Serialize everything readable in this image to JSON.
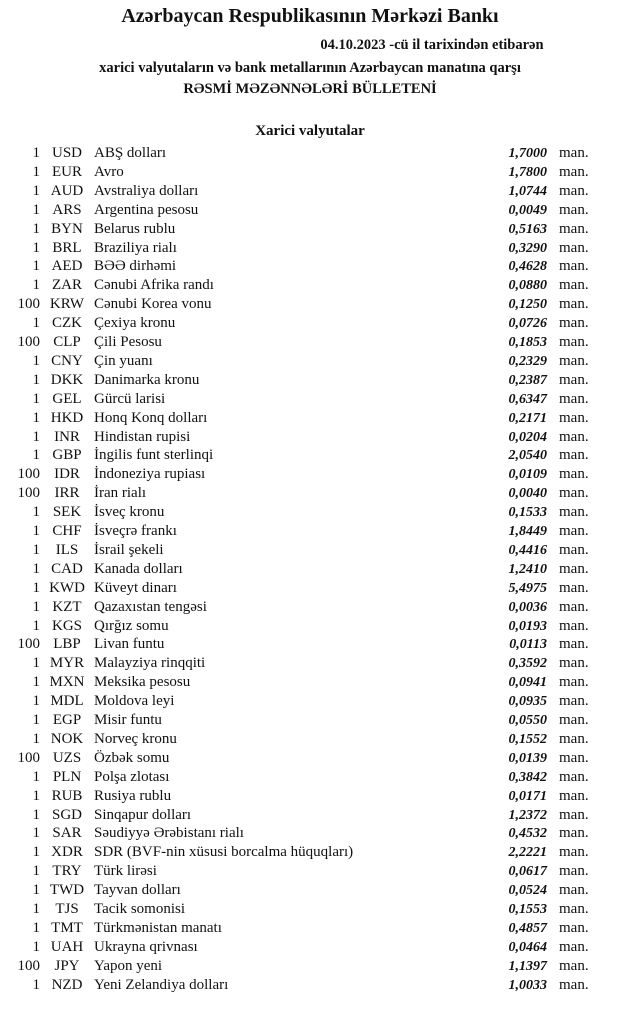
{
  "header": {
    "title": "Azərbaycan Respublikasının Mərkəzi Bankı",
    "date_line": "04.10.2023 -cü il tarixindən etibarən",
    "subtitle": "xarici valyutaların və bank metallarının Azərbaycan manatına qarşı",
    "bulletin": "RƏSMİ MƏZƏNNƏLƏRİ BÜLLETENİ"
  },
  "section_title": "Xarici valyutalar",
  "unit": "man.",
  "rates": [
    {
      "count": "1",
      "code": "USD",
      "name": "ABŞ dolları",
      "value": "1,7000"
    },
    {
      "count": "1",
      "code": "EUR",
      "name": "Avro",
      "value": "1,7800"
    },
    {
      "count": "1",
      "code": "AUD",
      "name": "Avstraliya dolları",
      "value": "1,0744"
    },
    {
      "count": "1",
      "code": "ARS",
      "name": "Argentina pesosu",
      "value": "0,0049"
    },
    {
      "count": "1",
      "code": "BYN",
      "name": "Belarus rublu",
      "value": "0,5163"
    },
    {
      "count": "1",
      "code": "BRL",
      "name": "Braziliya rialı",
      "value": "0,3290"
    },
    {
      "count": "1",
      "code": "AED",
      "name": "BƏƏ dirhəmi",
      "value": "0,4628"
    },
    {
      "count": "1",
      "code": "ZAR",
      "name": "Cənubi Afrika randı",
      "value": "0,0880"
    },
    {
      "count": "100",
      "code": "KRW",
      "name": "Cənubi Korea vonu",
      "value": "0,1250"
    },
    {
      "count": "1",
      "code": "CZK",
      "name": "Çexiya kronu",
      "value": "0,0726"
    },
    {
      "count": "100",
      "code": "CLP",
      "name": "Çili Pesosu",
      "value": "0,1853"
    },
    {
      "count": "1",
      "code": "CNY",
      "name": "Çin yuanı",
      "value": "0,2329"
    },
    {
      "count": "1",
      "code": "DKK",
      "name": "Danimarka kronu",
      "value": "0,2387"
    },
    {
      "count": "1",
      "code": "GEL",
      "name": "Gürcü larisi",
      "value": "0,6347"
    },
    {
      "count": "1",
      "code": "HKD",
      "name": "Honq Konq dolları",
      "value": "0,2171"
    },
    {
      "count": "1",
      "code": "INR",
      "name": "Hindistan rupisi",
      "value": "0,0204"
    },
    {
      "count": "1",
      "code": "GBP",
      "name": "İngilis funt sterlinqi",
      "value": "2,0540"
    },
    {
      "count": "100",
      "code": "IDR",
      "name": "İndoneziya rupiası",
      "value": "0,0109"
    },
    {
      "count": "100",
      "code": "IRR",
      "name": "İran rialı",
      "value": "0,0040"
    },
    {
      "count": "1",
      "code": "SEK",
      "name": "İsveç kronu",
      "value": "0,1533"
    },
    {
      "count": "1",
      "code": "CHF",
      "name": "İsveçrə frankı",
      "value": "1,8449"
    },
    {
      "count": "1",
      "code": "ILS",
      "name": "İsrail şekeli",
      "value": "0,4416"
    },
    {
      "count": "1",
      "code": "CAD",
      "name": "Kanada dolları",
      "value": "1,2410"
    },
    {
      "count": "1",
      "code": "KWD",
      "name": "Küveyt dinarı",
      "value": "5,4975"
    },
    {
      "count": "1",
      "code": "KZT",
      "name": "Qazaxıstan tengəsi",
      "value": "0,0036"
    },
    {
      "count": "1",
      "code": "KGS",
      "name": "Qırğız somu",
      "value": "0,0193"
    },
    {
      "count": "100",
      "code": "LBP",
      "name": "Livan funtu",
      "value": "0,0113"
    },
    {
      "count": "1",
      "code": "MYR",
      "name": "Malayziya rinqqiti",
      "value": "0,3592"
    },
    {
      "count": "1",
      "code": "MXN",
      "name": "Meksika pesosu",
      "value": "0,0941"
    },
    {
      "count": "1",
      "code": "MDL",
      "name": "Moldova leyi",
      "value": "0,0935"
    },
    {
      "count": "1",
      "code": "EGP",
      "name": "Misir funtu",
      "value": "0,0550"
    },
    {
      "count": "1",
      "code": "NOK",
      "name": "Norveç kronu",
      "value": "0,1552"
    },
    {
      "count": "100",
      "code": "UZS",
      "name": "Özbək somu",
      "value": "0,0139"
    },
    {
      "count": "1",
      "code": "PLN",
      "name": "Polşa zlotası",
      "value": "0,3842"
    },
    {
      "count": "1",
      "code": "RUB",
      "name": "Rusiya rublu",
      "value": "0,0171"
    },
    {
      "count": "1",
      "code": "SGD",
      "name": "Sinqapur dolları",
      "value": "1,2372"
    },
    {
      "count": "1",
      "code": "SAR",
      "name": "Səudiyyə Ərəbistanı rialı",
      "value": "0,4532"
    },
    {
      "count": "1",
      "code": "XDR",
      "name": "SDR (BVF-nin xüsusi borcalma hüquqları)",
      "value": "2,2221"
    },
    {
      "count": "1",
      "code": "TRY",
      "name": "Türk lirəsi",
      "value": "0,0617"
    },
    {
      "count": "1",
      "code": "TWD",
      "name": "Tayvan dolları",
      "value": "0,0524"
    },
    {
      "count": "1",
      "code": "TJS",
      "name": "Tacik somonisi",
      "value": "0,1553"
    },
    {
      "count": "1",
      "code": "TMT",
      "name": "Türkmənistan manatı",
      "value": "0,4857"
    },
    {
      "count": "1",
      "code": "UAH",
      "name": "Ukrayna qrivnası",
      "value": "0,0464"
    },
    {
      "count": "100",
      "code": "JPY",
      "name": "Yapon yeni",
      "value": "1,1397"
    },
    {
      "count": "1",
      "code": "NZD",
      "name": "Yeni Zelandiya dolları",
      "value": "1,0033"
    }
  ]
}
